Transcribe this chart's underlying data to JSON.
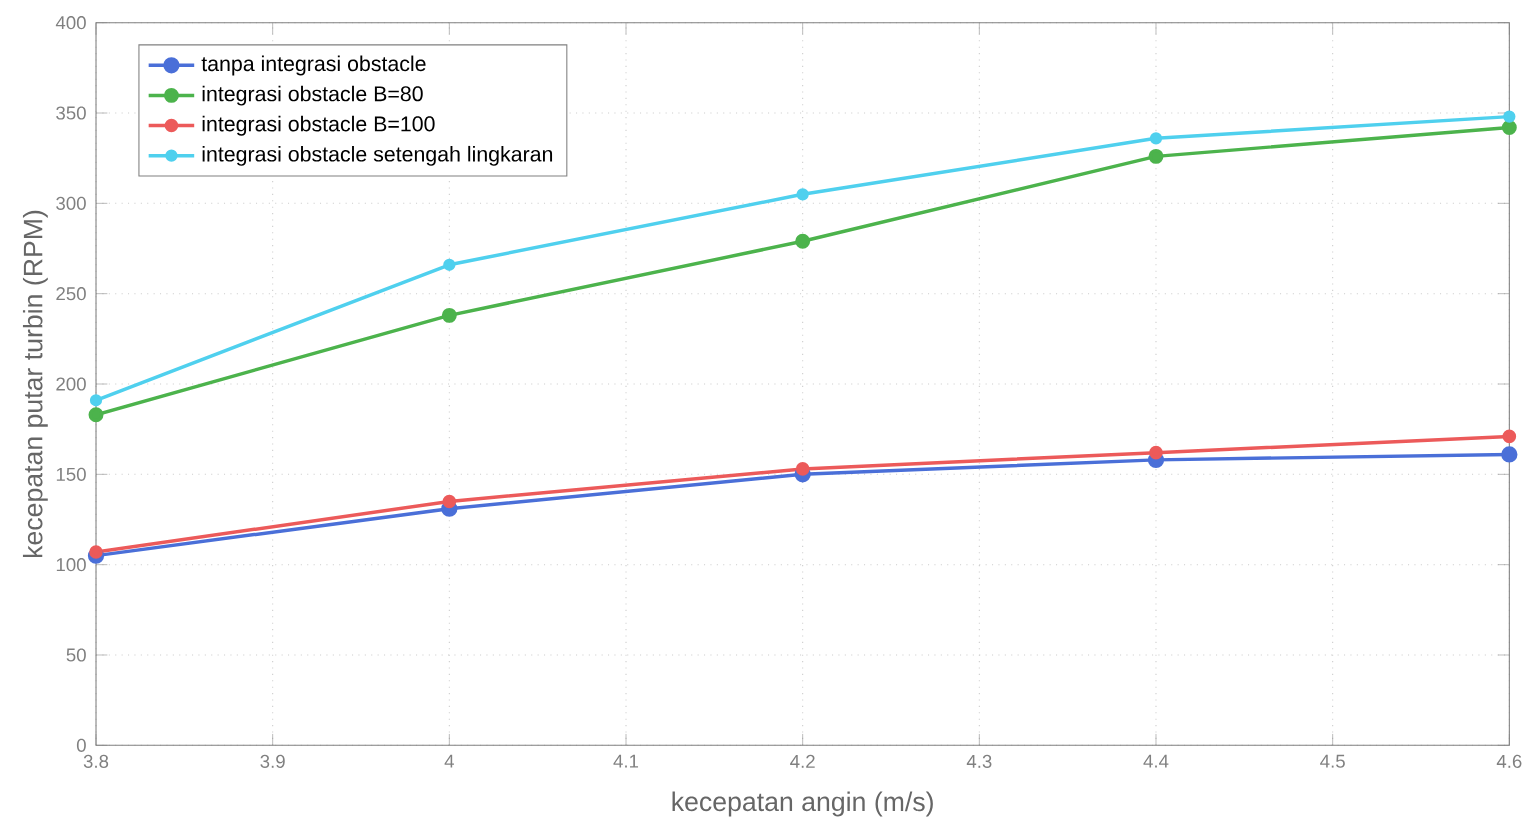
{
  "chart_data": {
    "type": "line",
    "xlabel": "kecepatan angin (m/s)",
    "ylabel": "kecepatan putar turbin (RPM)",
    "x": [
      3.8,
      4.0,
      4.2,
      4.4,
      4.6
    ],
    "series": [
      {
        "name": "tanpa integrasi obstacle",
        "color": "#4a6fd8",
        "values": [
          105,
          131,
          150,
          158,
          161
        ]
      },
      {
        "name": "integrasi obstacle B=80",
        "color": "#4cb34c",
        "values": [
          183,
          238,
          279,
          326,
          342
        ]
      },
      {
        "name": "integrasi obstacle B=100",
        "color": "#ec5a5a",
        "values": [
          107,
          135,
          153,
          162,
          171
        ]
      },
      {
        "name": "integrasi obstacle setengah lingkaran",
        "color": "#4fd0ee",
        "values": [
          191,
          266,
          305,
          336,
          348
        ]
      }
    ],
    "xlim": [
      3.8,
      4.6
    ],
    "xticks": [
      3.8,
      3.9,
      4,
      4.1,
      4.2,
      4.3,
      4.4,
      4.5,
      4.6
    ],
    "ylim": [
      0,
      400
    ],
    "yticks": [
      0,
      50,
      100,
      150,
      200,
      250,
      300,
      350,
      400
    ],
    "grid": true,
    "legend": "top left",
    "marker": "circle",
    "line_style": "solid"
  }
}
